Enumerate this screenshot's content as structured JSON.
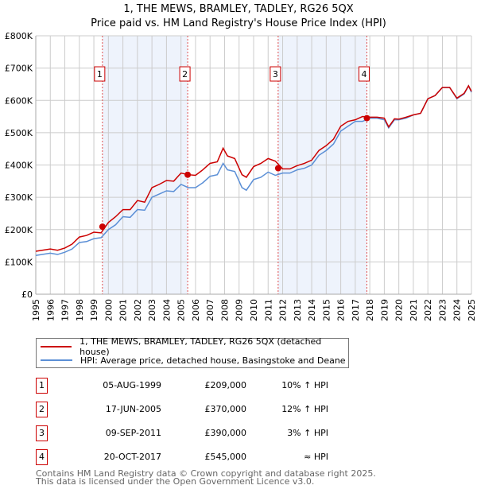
{
  "chart_data": {
    "type": "line",
    "title": "1, THE MEWS, BRAMLEY, TADLEY, RG26 5QX",
    "subtitle": "Price paid vs. HM Land Registry's House Price Index (HPI)",
    "xlim": [
      1995,
      2025
    ],
    "ylim": [
      0,
      800000
    ],
    "x_ticks": [
      "1995",
      "1996",
      "1997",
      "1998",
      "1999",
      "2000",
      "2001",
      "2002",
      "2003",
      "2004",
      "2005",
      "2006",
      "2007",
      "2008",
      "2009",
      "2010",
      "2011",
      "2012",
      "2013",
      "2014",
      "2015",
      "2016",
      "2017",
      "2018",
      "2019",
      "2020",
      "2021",
      "2022",
      "2023",
      "2024",
      "2025"
    ],
    "y_ticks": [
      {
        "v": 0,
        "label": "£0"
      },
      {
        "v": 100000,
        "label": "£100K"
      },
      {
        "v": 200000,
        "label": "£200K"
      },
      {
        "v": 300000,
        "label": "£300K"
      },
      {
        "v": 400000,
        "label": "£400K"
      },
      {
        "v": 500000,
        "label": "£500K"
      },
      {
        "v": 600000,
        "label": "£600K"
      },
      {
        "v": 700000,
        "label": "£700K"
      },
      {
        "v": 800000,
        "label": "£800K"
      }
    ],
    "grid": true,
    "x": [
      1995,
      1996,
      1996.5,
      1997,
      1997.5,
      1998,
      1998.5,
      1999,
      1999.5,
      2000,
      2000.5,
      2001,
      2001.5,
      2002,
      2002.5,
      2003,
      2003.5,
      2004,
      2004.5,
      2005,
      2005.5,
      2006,
      2006.5,
      2007,
      2007.5,
      2007.9,
      2008.2,
      2008.7,
      2009.2,
      2009.5,
      2010,
      2010.5,
      2011,
      2011.5,
      2012,
      2012.5,
      2013,
      2013.5,
      2014,
      2014.5,
      2015,
      2015.5,
      2016,
      2016.5,
      2017,
      2017.5,
      2018,
      2018.5,
      2019,
      2019.3,
      2019.7,
      2020,
      2020.5,
      2021,
      2021.5,
      2022,
      2022.5,
      2023,
      2023.5,
      2024,
      2024.5,
      2024.8,
      2025
    ],
    "series": [
      {
        "name": "1, THE MEWS, BRAMLEY, TADLEY, RG26 5QX (detached house)",
        "color": "#cc0000",
        "values": [
          133000,
          140000,
          136000,
          143000,
          155000,
          177000,
          182000,
          192000,
          190000,
          222000,
          240000,
          262000,
          262000,
          290000,
          285000,
          330000,
          340000,
          352000,
          350000,
          375000,
          370000,
          368000,
          385000,
          405000,
          410000,
          452000,
          428000,
          420000,
          370000,
          362000,
          395000,
          405000,
          420000,
          412000,
          388000,
          388000,
          398000,
          405000,
          415000,
          445000,
          460000,
          480000,
          520000,
          535000,
          540000,
          550000,
          548000,
          548000,
          545000,
          518000,
          543000,
          542000,
          548000,
          555000,
          560000,
          605000,
          615000,
          640000,
          640000,
          607000,
          622000,
          645000,
          628000
        ]
      },
      {
        "name": "HPI: Average price, detached house, Basingstoke and Deane",
        "color": "#5b8fd6",
        "values": [
          120000,
          127000,
          123000,
          130000,
          140000,
          160000,
          163000,
          172000,
          175000,
          200000,
          215000,
          240000,
          238000,
          262000,
          260000,
          300000,
          310000,
          320000,
          318000,
          340000,
          330000,
          330000,
          345000,
          365000,
          370000,
          405000,
          385000,
          380000,
          330000,
          322000,
          355000,
          362000,
          378000,
          368000,
          375000,
          375000,
          385000,
          390000,
          400000,
          430000,
          445000,
          465000,
          505000,
          520000,
          535000,
          535000,
          545000,
          545000,
          540000,
          515000,
          540000,
          540000,
          545000,
          555000,
          560000,
          605000,
          615000,
          640000,
          640000,
          605000,
          620000,
          645000,
          625000
        ]
      }
    ],
    "sales": [
      {
        "num": "1",
        "date": "05-AUG-1999",
        "x": 1999.59,
        "price": "£209,000",
        "value": 209000,
        "hpi": "10% ↑ HPI"
      },
      {
        "num": "2",
        "date": "17-JUN-2005",
        "x": 2005.46,
        "price": "£370,000",
        "value": 370000,
        "hpi": "12% ↑ HPI"
      },
      {
        "num": "3",
        "date": "09-SEP-2011",
        "x": 2011.69,
        "price": "£390,000",
        "value": 390000,
        "hpi": "3% ↑ HPI"
      },
      {
        "num": "4",
        "date": "20-OCT-2017",
        "x": 2017.8,
        "price": "£545,000",
        "value": 545000,
        "hpi": "≈ HPI"
      }
    ],
    "legend_position": "below"
  },
  "footer": [
    "Contains HM Land Registry data © Crown copyright and database right 2025.",
    "This data is licensed under the Open Government Licence v3.0."
  ]
}
